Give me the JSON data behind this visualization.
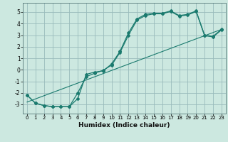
{
  "title": "",
  "xlabel": "Humidex (Indice chaleur)",
  "ylabel": "",
  "xlim": [
    -0.5,
    23.5
  ],
  "ylim": [
    -3.8,
    5.8
  ],
  "yticks": [
    -3,
    -2,
    -1,
    0,
    1,
    2,
    3,
    4,
    5
  ],
  "xticks": [
    0,
    1,
    2,
    3,
    4,
    5,
    6,
    7,
    8,
    9,
    10,
    11,
    12,
    13,
    14,
    15,
    16,
    17,
    18,
    19,
    20,
    21,
    22,
    23
  ],
  "background_color": "#cce8e0",
  "grid_color": "#99bbbb",
  "line_color": "#1a7a6e",
  "line1_x": [
    0,
    1,
    2,
    3,
    4,
    5,
    6,
    7,
    8,
    9,
    10,
    11,
    12,
    13,
    14,
    15,
    16,
    17,
    18,
    19,
    20,
    21,
    22,
    23
  ],
  "line1_y": [
    -2.2,
    -2.9,
    -3.1,
    -3.2,
    -3.2,
    -3.2,
    -2.5,
    -0.4,
    -0.2,
    -0.1,
    0.5,
    1.6,
    3.2,
    4.4,
    4.8,
    4.9,
    4.9,
    5.1,
    4.7,
    4.8,
    5.1,
    3.0,
    2.9,
    3.5
  ],
  "line2_x": [
    0,
    1,
    2,
    3,
    4,
    5,
    6,
    7,
    8,
    9,
    10,
    11,
    12,
    13,
    14,
    15,
    16,
    17,
    18,
    19,
    20,
    21,
    22,
    23
  ],
  "line2_y": [
    -2.2,
    -2.9,
    -3.1,
    -3.2,
    -3.2,
    -3.2,
    -2.0,
    -0.6,
    -0.3,
    -0.05,
    0.4,
    1.5,
    3.0,
    4.3,
    4.7,
    4.85,
    4.85,
    5.05,
    4.65,
    4.75,
    5.05,
    2.95,
    2.85,
    3.45
  ],
  "line3_x": [
    0,
    23
  ],
  "line3_y": [
    -2.8,
    3.5
  ],
  "xlabel_fontsize": 6.5,
  "tick_fontsize_x": 5.0,
  "tick_fontsize_y": 5.5
}
